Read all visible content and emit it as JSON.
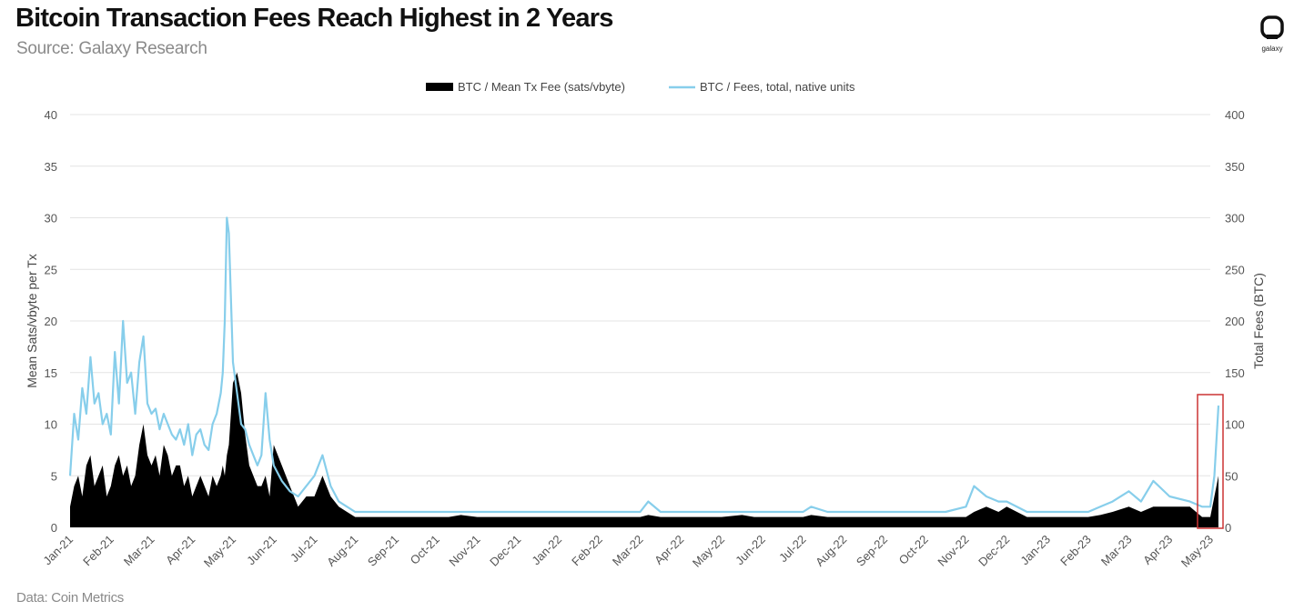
{
  "page": {
    "title": "Bitcoin Transaction Fees Reach Highest in 2 Years",
    "subtitle": "Source: Galaxy Research",
    "footer": "Data: Coin Metrics",
    "logo_text": "galaxy",
    "logo_icon": "galaxy-logo-icon"
  },
  "colors": {
    "area": "#000000",
    "line": "#87ceeb",
    "grid": "#e4e4e4",
    "highlight": "#cc3333"
  },
  "chart_data": {
    "type": "area",
    "title": "Bitcoin Transaction Fees Reach Highest in 2 Years",
    "ylabel": "Mean Sats/vbyte per Tx",
    "y2label": "Total Fees (BTC)",
    "ylim": [
      0,
      40
    ],
    "y2lim": [
      0,
      400
    ],
    "yticks": [
      0,
      5,
      10,
      15,
      20,
      25,
      30,
      35,
      40
    ],
    "y2ticks": [
      0,
      50,
      100,
      150,
      200,
      250,
      300,
      350,
      400
    ],
    "grid": "horizontal",
    "legend_position": "top-center",
    "categories": [
      "Jan-21",
      "Feb-21",
      "Mar-21",
      "Apr-21",
      "May-21",
      "Jun-21",
      "Jul-21",
      "Aug-21",
      "Sep-21",
      "Oct-21",
      "Nov-21",
      "Dec-21",
      "Jan-22",
      "Feb-22",
      "Mar-22",
      "Apr-22",
      "May-22",
      "Jun-22",
      "Jul-22",
      "Aug-22",
      "Sep-22",
      "Oct-22",
      "Nov-22",
      "Dec-22",
      "Jan-23",
      "Feb-23",
      "Mar-23",
      "Apr-23",
      "May-23"
    ],
    "annotation": "highlight box around May-23 spike",
    "series": [
      {
        "name": "BTC / Mean Tx Fee (sats/vbyte)",
        "type": "area",
        "axis": "left",
        "x": [
          0,
          0.1,
          0.2,
          0.3,
          0.4,
          0.5,
          0.6,
          0.7,
          0.8,
          0.9,
          1.0,
          1.1,
          1.2,
          1.3,
          1.4,
          1.5,
          1.6,
          1.7,
          1.8,
          1.9,
          2.0,
          2.1,
          2.2,
          2.3,
          2.4,
          2.5,
          2.6,
          2.7,
          2.8,
          2.9,
          3.0,
          3.1,
          3.2,
          3.3,
          3.4,
          3.5,
          3.6,
          3.7,
          3.75,
          3.8,
          3.85,
          3.9,
          4.0,
          4.1,
          4.2,
          4.3,
          4.4,
          4.5,
          4.6,
          4.7,
          4.8,
          4.9,
          5.0,
          5.2,
          5.4,
          5.6,
          5.8,
          6.0,
          6.2,
          6.4,
          6.6,
          6.8,
          7.0,
          7.5,
          8,
          8.5,
          9,
          9.3,
          9.6,
          10,
          10.5,
          11,
          11.5,
          12,
          12.5,
          13,
          13.5,
          14,
          14.2,
          14.5,
          15,
          15.5,
          16,
          16.5,
          16.8,
          17,
          17.5,
          18,
          18.2,
          18.6,
          19,
          19.5,
          20,
          20.5,
          21,
          21.5,
          22,
          22.2,
          22.5,
          22.8,
          23,
          23.5,
          24,
          24.5,
          25,
          25.3,
          25.6,
          26,
          26.3,
          26.6,
          27,
          27.5,
          27.8,
          28,
          28.1,
          28.2
        ],
        "values": [
          2,
          4,
          5,
          3,
          6,
          7,
          4,
          5,
          6,
          3,
          4,
          6,
          7,
          5,
          6,
          4,
          5,
          8,
          10,
          7,
          6,
          7,
          5,
          8,
          7,
          5,
          6,
          6,
          4,
          5,
          3,
          4,
          5,
          4,
          3,
          5,
          4,
          5,
          6,
          5,
          7,
          8,
          14,
          15,
          13,
          9,
          6,
          5,
          4,
          4,
          5,
          3,
          8,
          6,
          4,
          2,
          3,
          3,
          5,
          3,
          2,
          1.5,
          1,
          1,
          1,
          1,
          1,
          1,
          1.2,
          1,
          1,
          1,
          1,
          1,
          1,
          1,
          1,
          1,
          1.2,
          1,
          1,
          1,
          1,
          1.2,
          1,
          1,
          1,
          1,
          1.2,
          1,
          1,
          1,
          1,
          1,
          1,
          1,
          1,
          1.5,
          2,
          1.5,
          2,
          1,
          1,
          1,
          1,
          1.2,
          1.5,
          2,
          1.5,
          2,
          2,
          2,
          1,
          1,
          3,
          5
        ]
      },
      {
        "name": "BTC / Fees, total, native units",
        "type": "line",
        "axis": "right",
        "x": [
          0,
          0.1,
          0.2,
          0.3,
          0.4,
          0.5,
          0.6,
          0.7,
          0.8,
          0.9,
          1.0,
          1.1,
          1.2,
          1.3,
          1.4,
          1.5,
          1.6,
          1.7,
          1.8,
          1.9,
          2.0,
          2.1,
          2.2,
          2.3,
          2.4,
          2.5,
          2.6,
          2.7,
          2.8,
          2.9,
          3.0,
          3.1,
          3.2,
          3.3,
          3.4,
          3.5,
          3.6,
          3.7,
          3.75,
          3.8,
          3.85,
          3.9,
          4.0,
          4.1,
          4.2,
          4.3,
          4.4,
          4.5,
          4.6,
          4.7,
          4.8,
          4.9,
          5.0,
          5.2,
          5.4,
          5.6,
          5.8,
          6.0,
          6.2,
          6.4,
          6.6,
          6.8,
          7.0,
          7.5,
          8,
          8.5,
          9,
          9.3,
          9.6,
          10,
          10.5,
          11,
          11.5,
          12,
          12.5,
          13,
          13.5,
          14,
          14.2,
          14.5,
          15,
          15.5,
          16,
          16.5,
          16.8,
          17,
          17.5,
          18,
          18.2,
          18.6,
          19,
          19.5,
          20,
          20.5,
          21,
          21.5,
          22,
          22.2,
          22.5,
          22.8,
          23,
          23.5,
          24,
          24.5,
          25,
          25.3,
          25.6,
          26,
          26.3,
          26.6,
          27,
          27.5,
          27.8,
          28,
          28.1,
          28.2
        ],
        "values": [
          50,
          110,
          85,
          135,
          110,
          165,
          120,
          130,
          100,
          110,
          90,
          170,
          120,
          200,
          140,
          150,
          110,
          160,
          185,
          120,
          110,
          115,
          95,
          110,
          100,
          90,
          85,
          95,
          80,
          100,
          70,
          90,
          95,
          80,
          75,
          100,
          110,
          130,
          150,
          200,
          300,
          285,
          160,
          130,
          100,
          95,
          80,
          70,
          60,
          70,
          130,
          85,
          60,
          45,
          35,
          30,
          40,
          50,
          70,
          40,
          25,
          20,
          15,
          15,
          15,
          15,
          15,
          15,
          15,
          15,
          15,
          15,
          15,
          15,
          15,
          15,
          15,
          15,
          25,
          15,
          15,
          15,
          15,
          15,
          15,
          15,
          15,
          15,
          20,
          15,
          15,
          15,
          15,
          15,
          15,
          15,
          20,
          40,
          30,
          25,
          25,
          15,
          15,
          15,
          15,
          20,
          25,
          35,
          25,
          45,
          30,
          25,
          20,
          20,
          50,
          118
        ]
      }
    ]
  }
}
